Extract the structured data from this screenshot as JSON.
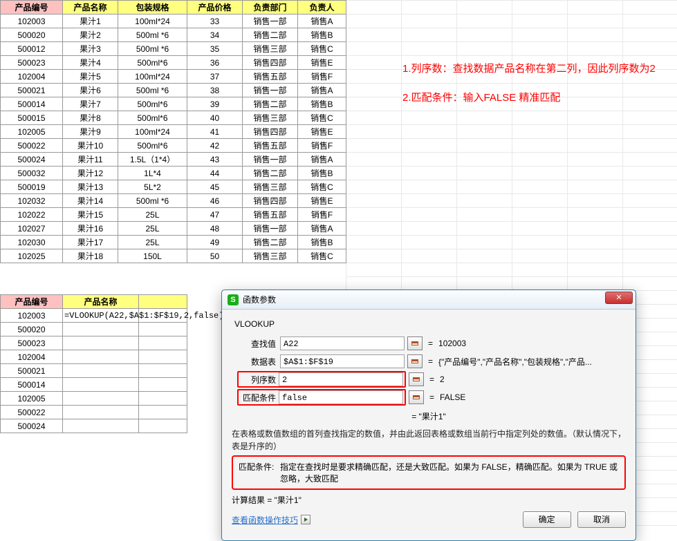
{
  "mainTable": {
    "headers": [
      "产品编号",
      "产品名称",
      "包装规格",
      "产品价格",
      "负责部门",
      "负责人"
    ],
    "headerStyles": [
      "hdr-pink",
      "hdr-yellow",
      "hdr-yellow",
      "hdr-yellow",
      "hdr-yellow",
      "hdr-yellow"
    ],
    "columnWidths": [
      "col-a",
      "col-b",
      "col-c",
      "col-d",
      "col-e",
      "col-f"
    ],
    "rows": [
      [
        "102003",
        "果汁1",
        "100ml*24",
        "33",
        "销售一部",
        "销售A"
      ],
      [
        "500020",
        "果汁2",
        "500ml *6",
        "34",
        "销售二部",
        "销售B"
      ],
      [
        "500012",
        "果汁3",
        "500ml *6",
        "35",
        "销售三部",
        "销售C"
      ],
      [
        "500023",
        "果汁4",
        "500ml*6",
        "36",
        "销售四部",
        "销售E"
      ],
      [
        "102004",
        "果汁5",
        "100ml*24",
        "37",
        "销售五部",
        "销售F"
      ],
      [
        "500021",
        "果汁6",
        "500ml *6",
        "38",
        "销售一部",
        "销售A"
      ],
      [
        "500014",
        "果汁7",
        "500ml*6",
        "39",
        "销售二部",
        "销售B"
      ],
      [
        "500015",
        "果汁8",
        "500ml*6",
        "40",
        "销售三部",
        "销售C"
      ],
      [
        "102005",
        "果汁9",
        "100ml*24",
        "41",
        "销售四部",
        "销售E"
      ],
      [
        "500022",
        "果汁10",
        "500ml*6",
        "42",
        "销售五部",
        "销售F"
      ],
      [
        "500024",
        "果汁11",
        "1.5L（1*4）",
        "43",
        "销售一部",
        "销售A"
      ],
      [
        "500032",
        "果汁12",
        "1L*4",
        "44",
        "销售二部",
        "销售B"
      ],
      [
        "500019",
        "果汁13",
        "5L*2",
        "45",
        "销售三部",
        "销售C"
      ],
      [
        "102032",
        "果汁14",
        "500ml *6",
        "46",
        "销售四部",
        "销售E"
      ],
      [
        "102022",
        "果汁15",
        "25L",
        "47",
        "销售五部",
        "销售F"
      ],
      [
        "102027",
        "果汁16",
        "25L",
        "48",
        "销售一部",
        "销售A"
      ],
      [
        "102030",
        "果汁17",
        "25L",
        "49",
        "销售二部",
        "销售B"
      ],
      [
        "102025",
        "果汁18",
        "150L",
        "50",
        "销售三部",
        "销售C"
      ]
    ]
  },
  "lookupTable": {
    "headers": [
      "产品编号",
      "产品名称",
      ""
    ],
    "headerStyles": [
      "hdr-pink",
      "hdr-yellow",
      "hdr-yellow"
    ],
    "formula": "=VLOOKUP(A22,$A$1:$F$19,2,false)",
    "ids": [
      "102003",
      "500020",
      "500023",
      "102004",
      "500021",
      "500014",
      "102005",
      "500022",
      "500024"
    ]
  },
  "annotations": {
    "line1": "1.列序数：查找数据产品名称在第二列，因此列序数为2",
    "line2": "2.匹配条件：输入FALSE  精准匹配",
    "color": "#ff0000"
  },
  "dialog": {
    "title": "函数参数",
    "iconLetter": "S",
    "funcName": "VLOOKUP",
    "params": [
      {
        "label": "查找值",
        "input": "A22",
        "result": "102003",
        "highlighted": false
      },
      {
        "label": "数据表",
        "input": "$A$1:$F$19",
        "result": "{\"产品编号\",\"产品名称\",\"包装规格\",\"产品...",
        "highlighted": false
      },
      {
        "label": "列序数",
        "input": "2",
        "result": "2",
        "highlighted": true
      },
      {
        "label": "匹配条件",
        "input": "false",
        "result": "FALSE",
        "highlighted": true
      }
    ],
    "midResult": "= \"果汁1\"",
    "descText": "在表格或数值数组的首列查找指定的数值，并由此返回表格或数组当前行中指定列处的数值。（默认情况下，表是升序的）",
    "paramDesc": {
      "key": "匹配条件:",
      "text": "指定在查找时是要求精确匹配，还是大致匹配。如果为 FALSE，精确匹配。如果为 TRUE 或忽略，大致匹配"
    },
    "calcResult": "计算结果 = \"果汁1\"",
    "helpLink": "查看函数操作技巧",
    "okBtn": "确定",
    "cancelBtn": "取消"
  },
  "colors": {
    "headerPink": "#ffc0c0",
    "headerYellow": "#ffff80",
    "border": "#999999",
    "highlight": "#ff0000",
    "link": "#2a6fc9",
    "dialogBorder": "#2a7ab0"
  }
}
